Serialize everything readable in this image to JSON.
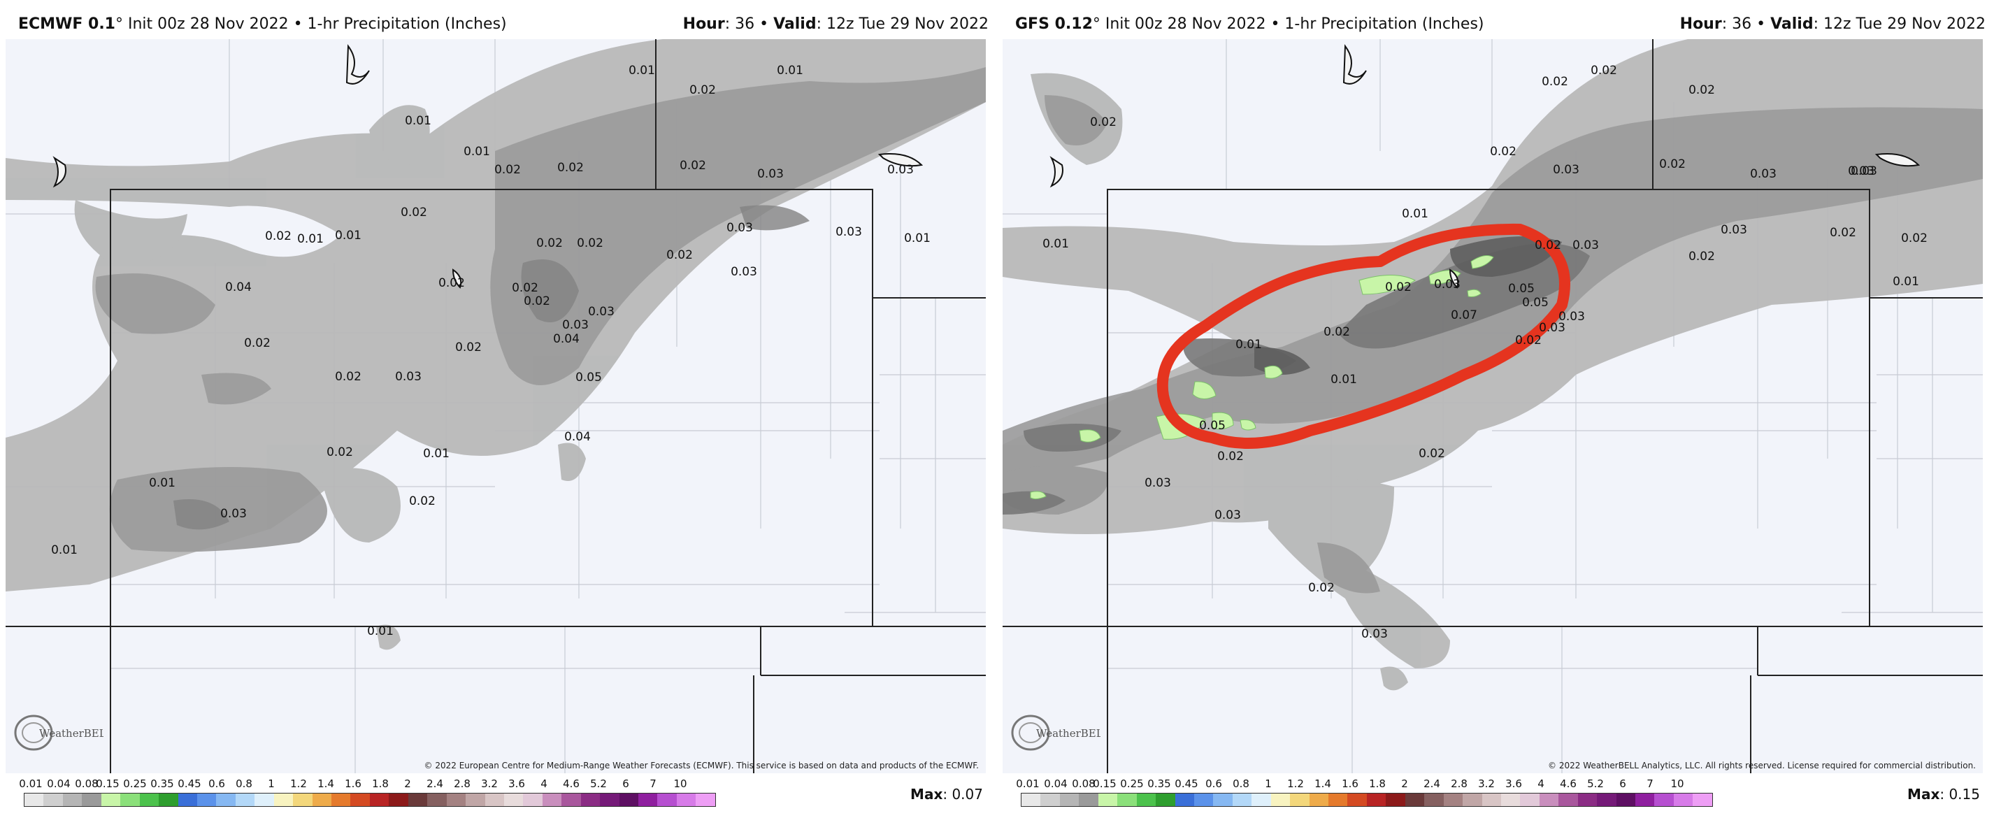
{
  "panels": [
    {
      "model_name": "ECMWF 0.1",
      "init_text": "° Init 00z 28 Nov 2022 • 1-hr Precipitation (Inches)",
      "hour_label": "Hour",
      "hour_value": ": 36 • ",
      "valid_label": "Valid",
      "valid_value": ": 12z Tue 29 Nov 2022",
      "copyright": "© 2022 European Centre for Medium-Range Weather Forecasts (ECMWF). This service is based on data and products of the ECMWF.",
      "max_label": "Max",
      "max_value": ": 0.07",
      "logo_text": "WeatherBELL",
      "contour_labels": [
        "0.01",
        "0.02",
        "0.01",
        "0.01",
        "0.02",
        "0.02",
        "0.03",
        "0.03",
        "0.01",
        "0.02",
        "0.01",
        "0.01",
        "0.04",
        "0.02",
        "0.02",
        "0.02",
        "0.02",
        "0.03",
        "0.01",
        "0.03",
        "0.02",
        "0.02",
        "0.03",
        "0.03",
        "0.02",
        "0.03",
        "0.04",
        "0.02",
        "0.02",
        "0.03",
        "0.05",
        "0.02",
        "0.04",
        "0.02",
        "0.01",
        "0.01",
        "0.02",
        "0.03",
        "0.01",
        "0.01",
        "0.02"
      ]
    },
    {
      "model_name": "GFS 0.12",
      "init_text": "° Init 00z 28 Nov 2022 • 1-hr Precipitation (Inches)",
      "hour_label": "Hour",
      "hour_value": ": 36 • ",
      "valid_label": "Valid",
      "valid_value": ": 12z Tue 29 Nov 2022",
      "copyright": "© 2022 WeatherBELL Analytics, LLC. All rights reserved. License required for commercial distribution.",
      "max_label": "Max",
      "max_value": ": 0.15",
      "logo_text": "WeatherBELL",
      "contour_labels": [
        "0.02",
        "0.02",
        "0.02",
        "0.02",
        "0.02",
        "0.03",
        "0.02",
        "0.03",
        "0.03",
        "0.01",
        "0.01",
        "0.02",
        "0.03",
        "0.02",
        "0.03",
        "0.02",
        "0.02",
        "0.01",
        "0.02",
        "0.03",
        "0.05",
        "0.05",
        "0.07",
        "0.03",
        "0.03",
        "0.02",
        "0.02",
        "0.01",
        "0.01",
        "0.05",
        "0.02",
        "0.02",
        "0.03",
        "0.03",
        "0.02",
        "0.03",
        "0.03"
      ]
    }
  ],
  "colorbar": {
    "ticks": [
      "0.01",
      "0.04",
      "0.08",
      "0.15",
      "0.25",
      "0.35",
      "0.45",
      "0.6",
      "0.8",
      "1",
      "1.2",
      "1.4",
      "1.6",
      "1.8",
      "2",
      "2.4",
      "2.8",
      "3.2",
      "3.6",
      "4",
      "4.6",
      "5.2",
      "6",
      "7",
      "10"
    ],
    "colors": [
      "#e8e8e8",
      "#cfcfcf",
      "#b5b5b5",
      "#9a9a9a",
      "#c8f5a8",
      "#8be07a",
      "#4cc24c",
      "#2e9e2e",
      "#3a6fd8",
      "#5b92ea",
      "#86b8f2",
      "#b3d8f8",
      "#dff0fb",
      "#f8f3c0",
      "#f3d77b",
      "#eeab4a",
      "#e57a2c",
      "#d44a22",
      "#b82424",
      "#8c1a1a",
      "#6a3a3a",
      "#856060",
      "#a48282",
      "#c0a6a6",
      "#d8c5c5",
      "#e8dcdc",
      "#e2c9d9",
      "#c98ebd",
      "#a9579d",
      "#8b2c84",
      "#751a78",
      "#5e0f63",
      "#8f1f9f",
      "#b64fd0",
      "#d77be8",
      "#ee9ef5"
    ]
  }
}
